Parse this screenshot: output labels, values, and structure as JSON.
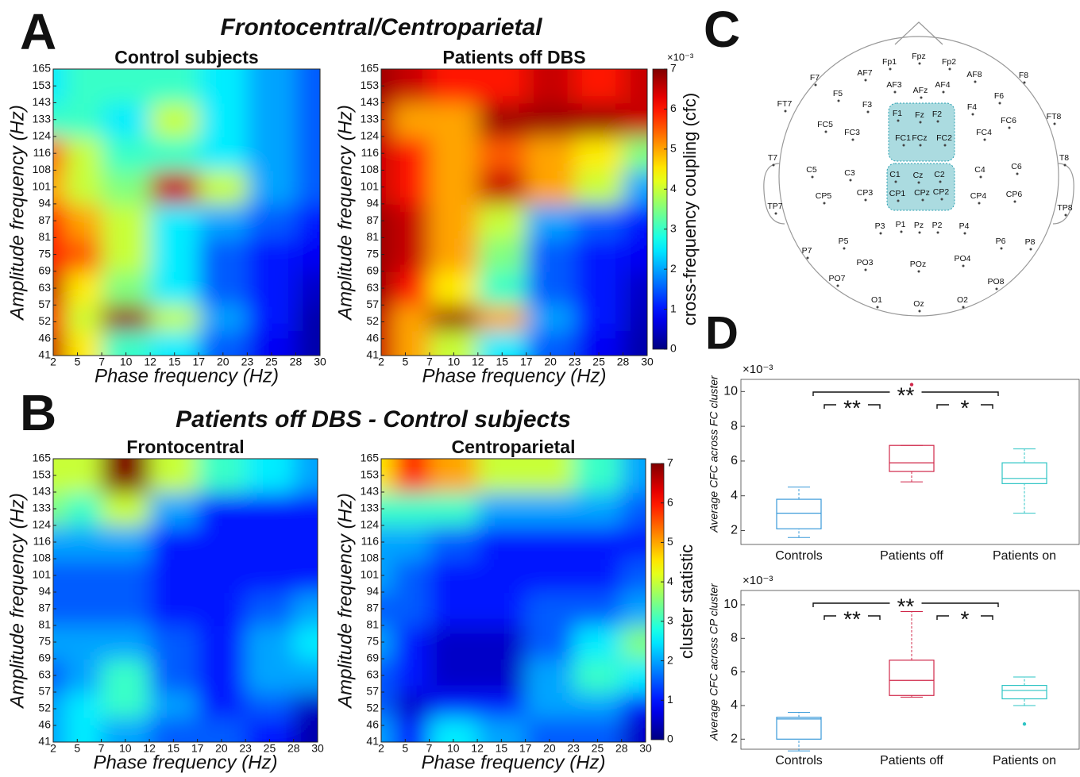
{
  "panel_labels": [
    "A",
    "B",
    "C",
    "D"
  ],
  "headings": [
    "Frontocentral/Centroparietal",
    "Patients off DBS - Control subjects"
  ],
  "chart_data": [
    {
      "type": "heatmap",
      "title": "Control subjects",
      "x_label": "Phase frequency (Hz)",
      "y_label": "Amplitude frequency (Hz)",
      "xticks": [
        2,
        5,
        7,
        10,
        12,
        15,
        17,
        20,
        23,
        25,
        28,
        30
      ],
      "yticks": [
        41,
        46,
        52,
        57,
        63,
        69,
        75,
        81,
        87,
        94,
        101,
        108,
        116,
        124,
        133,
        143,
        153,
        165
      ],
      "xlim": [
        2,
        30
      ],
      "ylim": [
        41,
        165
      ],
      "colormap": "jet",
      "clim": [
        0,
        7
      ],
      "x": [
        2,
        5,
        10,
        15,
        20,
        25,
        30
      ],
      "y": [
        46,
        52,
        63,
        75,
        87,
        101,
        116,
        133,
        153
      ],
      "z": [
        [
          6.5,
          4.5,
          3,
          2.5,
          1.5,
          0.8,
          0.3
        ],
        [
          6,
          4,
          6.8,
          4,
          2,
          1,
          0.3
        ],
        [
          6.5,
          4.5,
          3.5,
          2.5,
          1.5,
          1,
          0.5
        ],
        [
          6,
          5.5,
          4,
          2.5,
          1.5,
          1,
          0.8
        ],
        [
          6,
          5,
          4,
          2.5,
          2,
          1.5,
          1
        ],
        [
          5,
          4,
          3.5,
          6.5,
          4,
          2,
          1.5
        ],
        [
          5.5,
          4,
          3,
          3,
          2.5,
          2,
          1.5
        ],
        [
          3,
          3,
          2.5,
          4,
          2.5,
          2,
          1.5
        ],
        [
          2.5,
          3,
          3,
          3,
          2.5,
          2,
          1.5
        ]
      ]
    },
    {
      "type": "heatmap",
      "title": "Patients off DBS",
      "x_label": "Phase frequency (Hz)",
      "y_label": "Amplitude frequency (Hz)",
      "xticks": [
        2,
        5,
        7,
        10,
        12,
        15,
        17,
        20,
        23,
        25,
        28,
        30
      ],
      "yticks": [
        41,
        46,
        52,
        57,
        63,
        69,
        75,
        81,
        87,
        94,
        101,
        108,
        116,
        124,
        133,
        143,
        153,
        165
      ],
      "xlim": [
        2,
        30
      ],
      "ylim": [
        41,
        165
      ],
      "colormap": "jet",
      "clim": [
        0,
        7
      ],
      "x": [
        2,
        5,
        10,
        15,
        20,
        25,
        30
      ],
      "y": [
        46,
        52,
        63,
        75,
        87,
        101,
        116,
        133,
        153
      ],
      "z": [
        [
          6.5,
          5,
          4,
          2.5,
          1.5,
          0.8,
          0.3
        ],
        [
          6.5,
          5,
          6.8,
          5,
          2,
          1,
          0.4
        ],
        [
          6.8,
          6,
          4.5,
          3,
          1.5,
          1,
          0.5
        ],
        [
          6.8,
          6.5,
          5,
          3.5,
          1.5,
          1,
          0.8
        ],
        [
          6.8,
          6.5,
          5,
          4,
          2,
          1.5,
          1
        ],
        [
          6.5,
          6,
          5,
          6.5,
          5,
          4,
          2
        ],
        [
          6.5,
          6,
          5,
          5.5,
          5,
          4.5,
          3.5
        ],
        [
          6.5,
          5,
          5,
          6.8,
          6.8,
          6.8,
          6.5
        ],
        [
          6.8,
          6.5,
          6,
          6,
          6.5,
          6,
          6.5
        ]
      ],
      "colorbar": {
        "label": "cross-frequency coupling (cfc)",
        "scale_label": "×10⁻³",
        "ticks": [
          0,
          1,
          2,
          3,
          4,
          5,
          6,
          7
        ]
      }
    },
    {
      "type": "heatmap",
      "title": "Frontocentral",
      "x_label": "Phase frequency (Hz)",
      "y_label": "Amplitude frequency (Hz)",
      "xticks": [
        2,
        5,
        7,
        10,
        12,
        15,
        17,
        20,
        23,
        25,
        28,
        30
      ],
      "yticks": [
        41,
        46,
        52,
        57,
        63,
        69,
        75,
        81,
        87,
        94,
        101,
        108,
        116,
        124,
        133,
        143,
        153,
        165
      ],
      "xlim": [
        2,
        30
      ],
      "ylim": [
        41,
        165
      ],
      "colormap": "jet",
      "clim": [
        0,
        7
      ],
      "x": [
        2,
        5,
        10,
        15,
        20,
        25,
        30
      ],
      "y": [
        46,
        52,
        63,
        75,
        87,
        101,
        116,
        133,
        153
      ],
      "z": [
        [
          2,
          2.5,
          2,
          1.5,
          1.5,
          1,
          0.3
        ],
        [
          2,
          2.5,
          3,
          2,
          1,
          1.5,
          0.5
        ],
        [
          1.5,
          2,
          3,
          1.5,
          1,
          2,
          2
        ],
        [
          2,
          2,
          2,
          1.5,
          1,
          2,
          2.5
        ],
        [
          1.5,
          1.5,
          1.5,
          1,
          1,
          1.5,
          2
        ],
        [
          1.5,
          1.5,
          1.5,
          1,
          1,
          1,
          1
        ],
        [
          2,
          2,
          2,
          1,
          1,
          1,
          1
        ],
        [
          3.5,
          3,
          4,
          2,
          1,
          1,
          1
        ],
        [
          4,
          4,
          7,
          4,
          3,
          2.5,
          2
        ]
      ]
    },
    {
      "type": "heatmap",
      "title": "Centroparietal",
      "x_label": "Phase frequency (Hz)",
      "y_label": "Amplitude frequency (Hz)",
      "xticks": [
        2,
        5,
        7,
        10,
        12,
        15,
        17,
        20,
        23,
        25,
        28,
        30
      ],
      "yticks": [
        41,
        46,
        52,
        57,
        63,
        69,
        75,
        81,
        87,
        94,
        101,
        108,
        116,
        124,
        133,
        143,
        153,
        165
      ],
      "xlim": [
        2,
        30
      ],
      "ylim": [
        41,
        165
      ],
      "colormap": "jet",
      "clim": [
        0,
        7
      ],
      "x": [
        2,
        5,
        10,
        15,
        20,
        25,
        30
      ],
      "y": [
        46,
        52,
        63,
        75,
        87,
        101,
        116,
        133,
        153
      ],
      "z": [
        [
          2,
          1,
          2.5,
          2,
          1.5,
          1.5,
          0.5
        ],
        [
          1.5,
          0.5,
          1,
          1,
          2,
          2,
          1
        ],
        [
          1.5,
          1,
          0.5,
          0.5,
          2,
          3,
          2.5
        ],
        [
          2,
          1,
          0.5,
          0.5,
          1.5,
          2.5,
          3.5
        ],
        [
          1.5,
          1.5,
          1,
          1,
          1.5,
          1.5,
          2
        ],
        [
          2,
          1.5,
          1,
          1,
          1,
          1,
          1.5
        ],
        [
          2,
          2,
          1.5,
          1,
          1,
          1,
          1
        ],
        [
          3,
          3,
          3,
          2,
          2,
          2,
          1.5
        ],
        [
          4.5,
          6,
          5,
          4,
          4,
          3,
          2
        ]
      ],
      "colorbar": {
        "label": "cluster statistic",
        "ticks": [
          0,
          1,
          2,
          3,
          4,
          5,
          6,
          7
        ]
      }
    },
    {
      "type": "box",
      "y_label": "Average CFC across FC cluster",
      "scale_label": "×10⁻³",
      "categories": [
        "Controls",
        "Patients off",
        "Patients on"
      ],
      "colors": [
        "#3a9ad9",
        "#d0284a",
        "#2ec4c4"
      ],
      "ylim": [
        1.2,
        10.7
      ],
      "yticks": [
        2,
        4,
        6,
        8,
        10
      ],
      "boxes": [
        {
          "whislo": 1.6,
          "q1": 2.1,
          "med": 3.0,
          "q3": 3.8,
          "whishi": 4.5,
          "fliers": []
        },
        {
          "whislo": 4.8,
          "q1": 5.4,
          "med": 5.9,
          "q3": 6.9,
          "whishi": 6.9,
          "fliers": [
            10.4
          ]
        },
        {
          "whislo": 3.0,
          "q1": 4.7,
          "med": 5.0,
          "q3": 5.9,
          "whishi": 6.7,
          "fliers": []
        }
      ],
      "significance": [
        {
          "label": "**",
          "between": [
            "Controls",
            "Patients off"
          ]
        },
        {
          "label": "*",
          "between": [
            "Patients off",
            "Patients on"
          ]
        },
        {
          "label": "**",
          "between": [
            "Controls",
            "Patients on"
          ]
        }
      ]
    },
    {
      "type": "box",
      "y_label": "Average CFC across CP cluster",
      "scale_label": "×10⁻³",
      "categories": [
        "Controls",
        "Patients off",
        "Patients on"
      ],
      "colors": [
        "#3a9ad9",
        "#d0284a",
        "#2ec4c4"
      ],
      "ylim": [
        1.4,
        10.85
      ],
      "yticks": [
        2,
        4,
        6,
        8,
        10
      ],
      "boxes": [
        {
          "whislo": 1.3,
          "q1": 2.0,
          "med": 3.2,
          "q3": 3.3,
          "whishi": 3.6,
          "fliers": []
        },
        {
          "whislo": 4.5,
          "q1": 4.6,
          "med": 5.5,
          "q3": 6.7,
          "whishi": 9.6,
          "fliers": []
        },
        {
          "whislo": 4.0,
          "q1": 4.4,
          "med": 4.9,
          "q3": 5.2,
          "whishi": 5.7,
          "fliers": [
            2.9
          ]
        }
      ],
      "significance": [
        {
          "label": "**",
          "between": [
            "Controls",
            "Patients off"
          ]
        },
        {
          "label": "*",
          "between": [
            "Patients off",
            "Patients on"
          ]
        },
        {
          "label": "**",
          "between": [
            "Controls",
            "Patients on"
          ]
        }
      ]
    }
  ],
  "electrode_map": {
    "electrodes": [
      "Fp1",
      "Fpz",
      "Fp2",
      "F7",
      "AF7",
      "AF3",
      "AFz",
      "AF4",
      "AF8",
      "F8",
      "F5",
      "F6",
      "FT7",
      "F3",
      "F4",
      "FT8",
      "F1",
      "Fz",
      "F2",
      "FC5",
      "FC6",
      "FC3",
      "FC4",
      "FC1",
      "FCz",
      "FC2",
      "T7",
      "T8",
      "C5",
      "C3",
      "C1",
      "Cz",
      "C2",
      "C4",
      "C6",
      "CP5",
      "CP3",
      "CP1",
      "CPz",
      "CP2",
      "CP4",
      "CP6",
      "TP7",
      "TP8",
      "P3",
      "P1",
      "Pz",
      "P2",
      "P4",
      "P5",
      "P6",
      "P7",
      "P8",
      "PO3",
      "POz",
      "PO4",
      "PO7",
      "PO8",
      "O1",
      "Oz",
      "O2"
    ]
  }
}
